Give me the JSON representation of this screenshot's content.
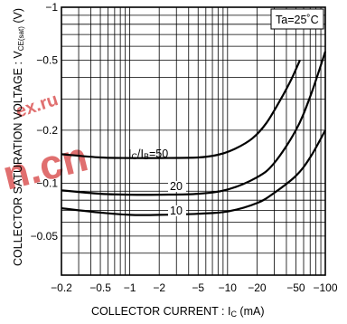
{
  "chart_data": {
    "type": "line",
    "title": "",
    "xlabel_main": "COLLECTOR  CURRENT : I",
    "xlabel_sub": "C",
    "xlabel_unit": " (mA)",
    "ylabel_main": "COLLECTOR  SATURATION  VOLTAGE : V",
    "ylabel_sub": "CE(sat)",
    "ylabel_unit": " (V)",
    "x_scale": "log",
    "y_scale": "log",
    "xlim": [
      -0.2,
      -100
    ],
    "ylim": [
      -0.03,
      -1
    ],
    "x_ticks": [
      {
        "value": -0.2,
        "label": "−0.2"
      },
      {
        "value": -0.5,
        "label": "−0.5"
      },
      {
        "value": -1,
        "label": "−1"
      },
      {
        "value": -2,
        "label": "−2"
      },
      {
        "value": -5,
        "label": "−5"
      },
      {
        "value": -10,
        "label": "−10"
      },
      {
        "value": -20,
        "label": "−20"
      },
      {
        "value": -50,
        "label": "−50"
      },
      {
        "value": -100,
        "label": "−100"
      }
    ],
    "y_ticks": [
      {
        "value": -1,
        "label": "−1"
      },
      {
        "value": -0.5,
        "label": "−0.5"
      },
      {
        "value": -0.2,
        "label": "−0.2"
      },
      {
        "value": -0.1,
        "label": "−0.1"
      },
      {
        "value": -0.05,
        "label": "−0.05"
      }
    ],
    "grid": true,
    "condition_label": "Ta=25˚C",
    "series": [
      {
        "label_main": "I",
        "label_sub1": "C",
        "label_mid": "/I",
        "label_sub2": "B",
        "label_value": "=50",
        "x": [
          -0.2,
          -0.5,
          -1,
          -2,
          -5,
          -8,
          -12,
          -18,
          -25,
          -35,
          -45,
          -55
        ],
        "y": [
          -0.146,
          -0.14,
          -0.139,
          -0.139,
          -0.14,
          -0.145,
          -0.157,
          -0.18,
          -0.22,
          -0.3,
          -0.39,
          -0.5
        ]
      },
      {
        "label_value": "20",
        "x": [
          -0.2,
          -0.5,
          -1,
          -2,
          -5,
          -10,
          -20,
          -30,
          -50,
          -70,
          -100
        ],
        "y": [
          -0.091,
          -0.087,
          -0.086,
          -0.086,
          -0.087,
          -0.092,
          -0.108,
          -0.13,
          -0.2,
          -0.31,
          -0.56
        ]
      },
      {
        "label_value": "10",
        "x": [
          -0.2,
          -0.5,
          -1,
          -2,
          -5,
          -10,
          -20,
          -30,
          -50,
          -70,
          -100
        ],
        "y": [
          -0.072,
          -0.068,
          -0.066,
          -0.066,
          -0.067,
          -0.069,
          -0.077,
          -0.088,
          -0.11,
          -0.14,
          -0.2
        ]
      }
    ]
  },
  "watermark": {
    "text_top": "ex.ru",
    "text_bottom": "n.cn"
  }
}
